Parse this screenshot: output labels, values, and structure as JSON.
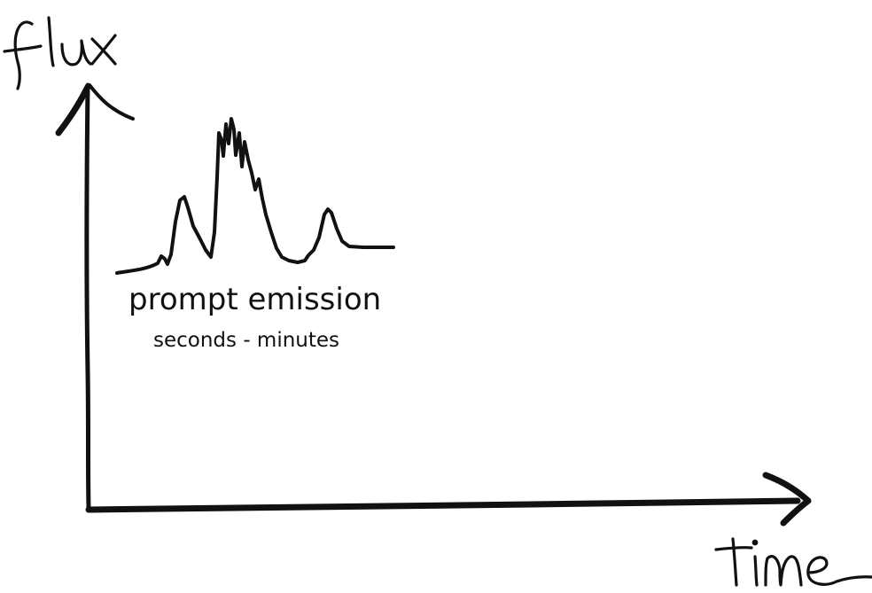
{
  "axes": {
    "y_label": "flux",
    "x_label": "time"
  },
  "annotation": {
    "title": "prompt emission",
    "subtitle": "seconds - minutes"
  },
  "colors": {
    "ink": "#111111",
    "background": "#ffffff"
  }
}
